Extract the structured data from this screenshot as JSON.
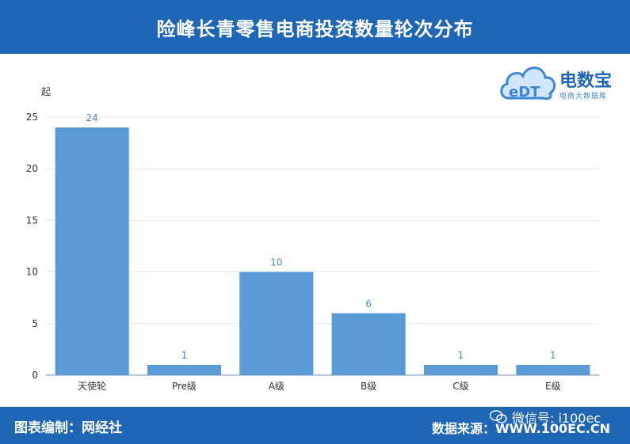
{
  "header": {
    "title": "险峰长青零售电商投资数量轮次分布"
  },
  "logo": {
    "mark": "eDT",
    "brand": "电数宝",
    "tagline": "电商大数据库"
  },
  "footer": {
    "left": "图表编制：网经社",
    "right": "数据来源：WWW.100EC.CN",
    "watermark": "微信号: i100ec"
  },
  "colors": {
    "header_bg": "#1f66b5",
    "bar": "#5b9bd5",
    "value_label": "#4a8ac7",
    "grid": "#e6e6e6"
  },
  "chart_data": {
    "type": "bar",
    "ylabel": "起",
    "categories": [
      "天使轮",
      "Pre级",
      "A级",
      "B级",
      "C级",
      "E级"
    ],
    "values": [
      24,
      1,
      10,
      6,
      1,
      1
    ],
    "ylim": [
      0,
      25
    ],
    "yticks": [
      0,
      5,
      10,
      15,
      20,
      25
    ],
    "grid": true,
    "data_labels": true
  }
}
